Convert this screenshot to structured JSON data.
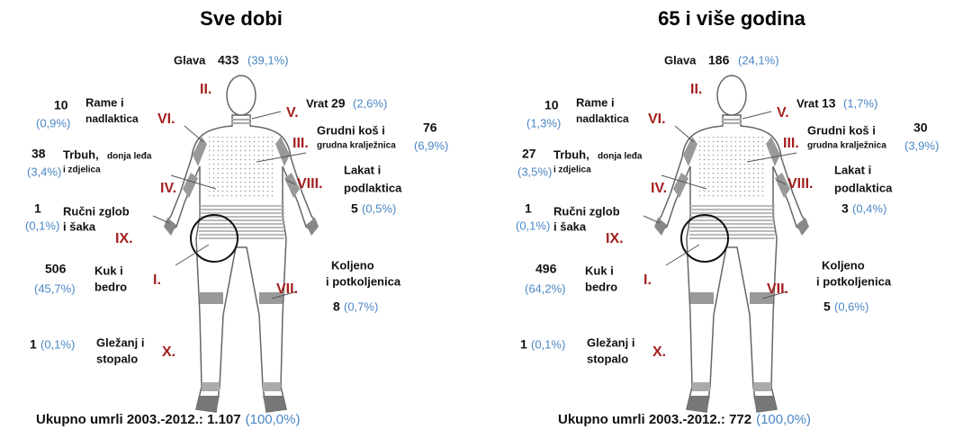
{
  "panels": [
    {
      "title": "Sve dobi",
      "regions": [
        {
          "numeral": "II.",
          "label": [
            "Glava"
          ],
          "count": "433",
          "pct": "(39,1%)"
        },
        {
          "numeral": "V.",
          "label": [
            "Vrat"
          ],
          "count": "29",
          "pct": "(2,6%)"
        },
        {
          "numeral": "VI.",
          "label": [
            "Rame i",
            "nadlaktica"
          ],
          "count": "10",
          "pct": "(0,9%)"
        },
        {
          "numeral": "III.",
          "label": [
            "Grudni koš i",
            "grudna kralježnica"
          ],
          "count": "76",
          "pct": "(6,9%)"
        },
        {
          "numeral": "IV.",
          "label": [
            "Trbuh,",
            "donja leđa",
            "i zdjelica"
          ],
          "count": "38",
          "pct": "(3,4%)"
        },
        {
          "numeral": "VIII.",
          "label": [
            "Lakat i",
            "podlaktica"
          ],
          "count": "5",
          "pct": "(0,5%)"
        },
        {
          "numeral": "IX.",
          "label": [
            "Ručni zglob",
            "i šaka"
          ],
          "count": "1",
          "pct": "(0,1%)"
        },
        {
          "numeral": "I.",
          "label": [
            "Kuk i",
            "bedro"
          ],
          "count": "506",
          "pct": "(45,7%)"
        },
        {
          "numeral": "VII.",
          "label": [
            "Koljeno",
            "i potkoljenica"
          ],
          "count": "8",
          "pct": "(0,7%)"
        },
        {
          "numeral": "X.",
          "label": [
            "Gležanj i",
            "stopalo"
          ],
          "count": "1",
          "pct": "(0,1%)"
        }
      ],
      "total": {
        "label": "Ukupno umrli 2003.-2012.: 1.107",
        "pct": "(100,0%)"
      }
    },
    {
      "title": "65 i više godina",
      "regions": [
        {
          "numeral": "II.",
          "label": [
            "Glava"
          ],
          "count": "186",
          "pct": "(24,1%)"
        },
        {
          "numeral": "V.",
          "label": [
            "Vrat"
          ],
          "count": "13",
          "pct": "(1,7%)"
        },
        {
          "numeral": "VI.",
          "label": [
            "Rame i",
            "nadlaktica"
          ],
          "count": "10",
          "pct": "(1,3%)"
        },
        {
          "numeral": "III.",
          "label": [
            "Grudni koš i",
            "grudna kralježnica"
          ],
          "count": "30",
          "pct": "(3,9%)"
        },
        {
          "numeral": "IV.",
          "label": [
            "Trbuh,",
            "donja leđa",
            "i zdjelica"
          ],
          "count": "27",
          "pct": "(3,5%)"
        },
        {
          "numeral": "VIII.",
          "label": [
            "Lakat i",
            "podlaktica"
          ],
          "count": "3",
          "pct": "(0,4%)"
        },
        {
          "numeral": "IX.",
          "label": [
            "Ručni zglob",
            "i šaka"
          ],
          "count": "1",
          "pct": "(0,1%)"
        },
        {
          "numeral": "I.",
          "label": [
            "Kuk i",
            "bedro"
          ],
          "count": "496",
          "pct": "(64,2%)"
        },
        {
          "numeral": "VII.",
          "label": [
            "Koljeno",
            "i potkoljenica"
          ],
          "count": "5",
          "pct": "(0,6%)"
        },
        {
          "numeral": "X.",
          "label": [
            "Gležanj i",
            "stopalo"
          ],
          "count": "1",
          "pct": "(0,1%)"
        }
      ],
      "total": {
        "label": "Ukupno umrli 2003.-2012.:  772",
        "pct": "(100,0%)"
      }
    }
  ]
}
